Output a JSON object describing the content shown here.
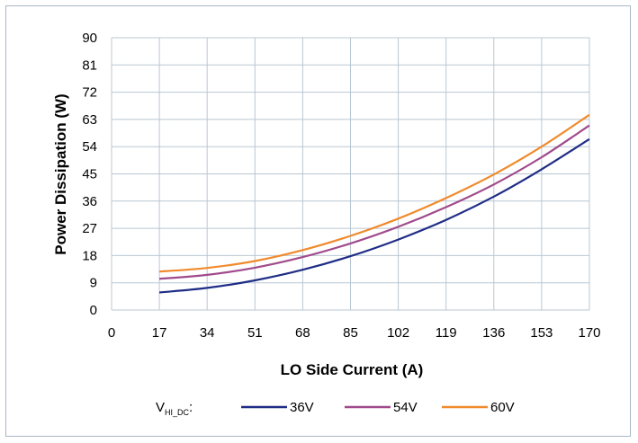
{
  "chart_data": {
    "type": "line",
    "title": "",
    "xlabel": "LO Side Current (A)",
    "ylabel": "Power Dissipation (W)",
    "xlim": [
      0,
      170
    ],
    "ylim": [
      0,
      90
    ],
    "x_ticks": [
      "0",
      "17",
      "34",
      "51",
      "68",
      "85",
      "102",
      "119",
      "136",
      "153",
      "170"
    ],
    "y_ticks": [
      "0",
      "9",
      "18",
      "27",
      "36",
      "45",
      "54",
      "63",
      "72",
      "81",
      "90"
    ],
    "grid": true,
    "legend_position": "bottom",
    "legend_prefix": {
      "main": "V",
      "sub": "HI_DC",
      "suffix": ":"
    },
    "x": [
      17,
      34,
      51,
      68,
      85,
      102,
      119,
      136,
      153,
      170
    ],
    "series": [
      {
        "name": "36V",
        "color": "#1f2d86",
        "values": [
          5.8,
          7.3,
          9.8,
          13.3,
          17.8,
          23.3,
          29.8,
          37.5,
          46.5,
          56.5
        ]
      },
      {
        "name": "54V",
        "color": "#a04a8c",
        "values": [
          10.3,
          11.6,
          14.0,
          17.5,
          22.0,
          27.5,
          34.0,
          41.5,
          50.5,
          61.0
        ]
      },
      {
        "name": "60V",
        "color": "#f08a2c",
        "values": [
          12.7,
          13.9,
          16.2,
          19.8,
          24.5,
          30.2,
          37.0,
          44.8,
          54.0,
          64.5
        ]
      }
    ]
  }
}
